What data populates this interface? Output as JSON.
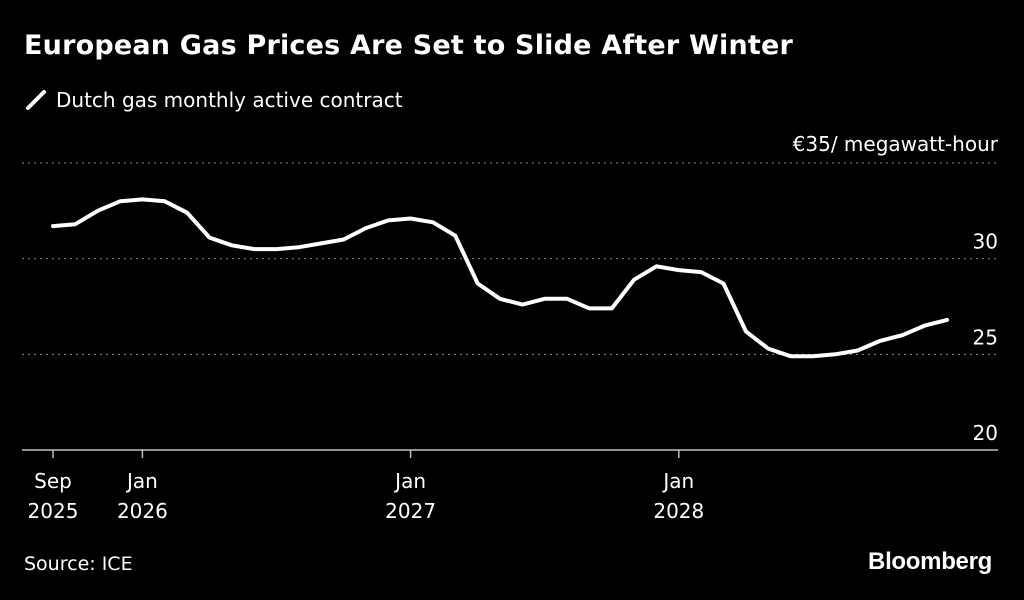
{
  "chart_data": {
    "type": "line",
    "title": "European Gas Prices Are Set to Slide After Winter",
    "legend": [
      "Dutch gas monthly active contract"
    ],
    "legend_placement": "top-left",
    "y_unit_label": "€35/ megawatt-hour",
    "ylim": [
      20,
      35
    ],
    "y_ticks": [
      20,
      25,
      30
    ],
    "grid": true,
    "y_axis_side": "right",
    "x_ticks": [
      {
        "top": "Sep",
        "bottom": "2025",
        "date": "2025-09"
      },
      {
        "top": "Jan",
        "bottom": "2026",
        "date": "2026-01"
      },
      {
        "top": "Jan",
        "bottom": "2027",
        "date": "2027-01"
      },
      {
        "top": "Jan",
        "bottom": "2028",
        "date": "2028-01"
      }
    ],
    "series": [
      {
        "name": "Dutch gas monthly active contract",
        "color": "#ffffff",
        "x": [
          "2025-09",
          "2025-10",
          "2025-11",
          "2025-12",
          "2026-01",
          "2026-02",
          "2026-03",
          "2026-04",
          "2026-05",
          "2026-06",
          "2026-07",
          "2026-08",
          "2026-09",
          "2026-10",
          "2026-11",
          "2026-12",
          "2027-01",
          "2027-02",
          "2027-03",
          "2027-04",
          "2027-05",
          "2027-06",
          "2027-07",
          "2027-08",
          "2027-09",
          "2027-10",
          "2027-11",
          "2027-12",
          "2028-01",
          "2028-02",
          "2028-03",
          "2028-04",
          "2028-05",
          "2028-06",
          "2028-07",
          "2028-08",
          "2028-09",
          "2028-10",
          "2028-11",
          "2028-12",
          "2029-01"
        ],
        "values": [
          31.7,
          31.8,
          32.5,
          33.0,
          33.1,
          33.0,
          32.4,
          31.1,
          30.7,
          30.5,
          30.5,
          30.6,
          30.8,
          31.0,
          31.6,
          32.0,
          32.1,
          31.9,
          31.2,
          28.7,
          27.9,
          27.6,
          27.9,
          27.9,
          27.4,
          27.4,
          28.9,
          29.6,
          29.4,
          29.3,
          28.7,
          26.2,
          25.3,
          24.9,
          24.9,
          25.0,
          25.2,
          25.7,
          26.0,
          26.5,
          26.8
        ]
      }
    ]
  },
  "source": "Source: ICE",
  "logo": "Bloomberg",
  "colors": {
    "background": "#000000",
    "text": "#ffffff",
    "grid": "#8a8a8a",
    "axis": "#bfbfbf"
  }
}
